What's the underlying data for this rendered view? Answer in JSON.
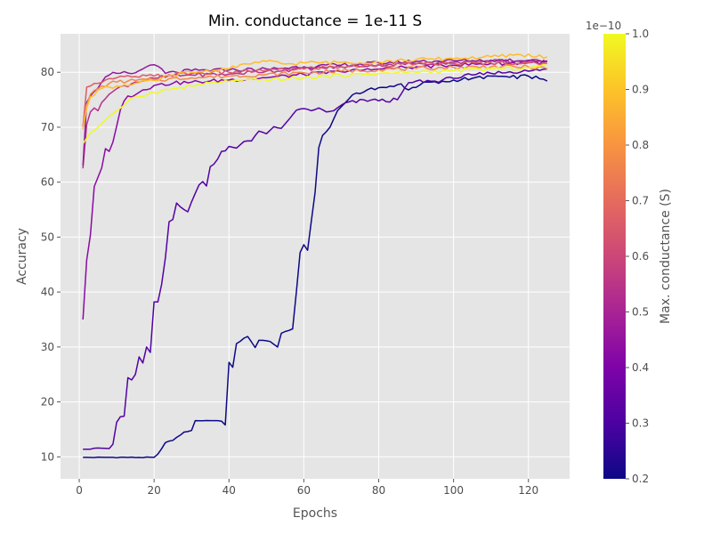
{
  "chart_data": {
    "type": "line",
    "title": "Min. conductance = 1e-11 S",
    "xlabel": "Epochs",
    "ylabel": "Accuracy",
    "xlim": [
      -5,
      131
    ],
    "ylim": [
      6,
      87
    ],
    "xticks": [
      0,
      20,
      40,
      60,
      80,
      100,
      120
    ],
    "yticks": [
      10,
      20,
      30,
      40,
      50,
      60,
      70,
      80
    ],
    "grid": true,
    "colorbar": {
      "label": "Max. conductance (S)",
      "offset_label": "1e−10",
      "ticks": [
        "0.2",
        "0.3",
        "0.4",
        "0.5",
        "0.6",
        "0.7",
        "0.8",
        "0.9",
        "1.0"
      ],
      "range": [
        0.2,
        1.0
      ],
      "colormap": "plasma"
    },
    "series": [
      {
        "color": "#0d0887",
        "knots": [
          [
            1,
            9.9
          ],
          [
            20,
            9.9
          ],
          [
            21,
            10.5
          ],
          [
            23,
            12.6
          ],
          [
            25,
            13.0
          ],
          [
            28,
            14.5
          ],
          [
            30,
            14.8
          ],
          [
            31,
            16.6
          ],
          [
            35,
            16.6
          ],
          [
            38,
            16.5
          ],
          [
            39,
            15.8
          ],
          [
            40,
            27.2
          ],
          [
            41,
            26.3
          ],
          [
            42,
            30.6
          ],
          [
            44,
            31.6
          ],
          [
            45,
            31.9
          ],
          [
            47,
            29.9
          ],
          [
            48,
            31.2
          ],
          [
            51,
            31.0
          ],
          [
            53,
            30.0
          ],
          [
            54,
            32.5
          ],
          [
            56,
            33.0
          ],
          [
            57,
            33.3
          ],
          [
            58,
            40.0
          ],
          [
            59,
            47.2
          ],
          [
            60,
            48.6
          ],
          [
            61,
            47.6
          ],
          [
            62,
            52.9
          ],
          [
            63,
            58.1
          ],
          [
            64,
            66.3
          ],
          [
            65,
            68.5
          ],
          [
            67,
            70.0
          ],
          [
            69,
            73.0
          ],
          [
            71,
            74.4
          ],
          [
            73,
            75.9
          ],
          [
            76,
            76.4
          ],
          [
            80,
            77.2
          ],
          [
            84,
            77.4
          ],
          [
            86,
            77.9
          ],
          [
            88,
            76.8
          ],
          [
            92,
            78.2
          ],
          [
            96,
            78.0
          ],
          [
            100,
            78.6
          ],
          [
            105,
            78.9
          ],
          [
            110,
            79.3
          ],
          [
            115,
            79.1
          ],
          [
            120,
            79.3
          ],
          [
            125,
            78.4
          ]
        ]
      },
      {
        "color": "#5302a3",
        "knots": [
          [
            1,
            11.4
          ],
          [
            3,
            11.4
          ],
          [
            5,
            11.6
          ],
          [
            8,
            11.5
          ],
          [
            9,
            12.3
          ],
          [
            10,
            16.3
          ],
          [
            11,
            17.3
          ],
          [
            12,
            17.4
          ],
          [
            13,
            24.4
          ],
          [
            14,
            24.0
          ],
          [
            15,
            25.0
          ],
          [
            16,
            28.2
          ],
          [
            17,
            27.1
          ],
          [
            18,
            30.0
          ],
          [
            19,
            29.0
          ],
          [
            20,
            38.2
          ],
          [
            21,
            38.2
          ],
          [
            22,
            41.4
          ],
          [
            23,
            46.2
          ],
          [
            24,
            52.8
          ],
          [
            25,
            53.2
          ],
          [
            26,
            56.2
          ],
          [
            27,
            55.5
          ],
          [
            28,
            55.0
          ],
          [
            29,
            54.6
          ],
          [
            30,
            56.4
          ],
          [
            32,
            59.5
          ],
          [
            33,
            60.1
          ],
          [
            34,
            59.3
          ],
          [
            35,
            62.8
          ],
          [
            36,
            63.3
          ],
          [
            37,
            64.2
          ],
          [
            38,
            65.6
          ],
          [
            39,
            65.7
          ],
          [
            40,
            66.5
          ],
          [
            42,
            66.2
          ],
          [
            44,
            67.4
          ],
          [
            46,
            67.5
          ],
          [
            48,
            69.3
          ],
          [
            50,
            68.8
          ],
          [
            52,
            70.1
          ],
          [
            54,
            69.8
          ],
          [
            56,
            71.4
          ],
          [
            58,
            73.1
          ],
          [
            60,
            73.4
          ],
          [
            62,
            73.0
          ],
          [
            64,
            73.5
          ],
          [
            66,
            72.8
          ],
          [
            68,
            73.0
          ],
          [
            70,
            74.0
          ],
          [
            72,
            74.6
          ],
          [
            74,
            74.5
          ],
          [
            76,
            75.0
          ],
          [
            80,
            74.8
          ],
          [
            85,
            75.0
          ],
          [
            88,
            78.1
          ],
          [
            90,
            78.4
          ],
          [
            95,
            78.4
          ],
          [
            100,
            78.9
          ],
          [
            105,
            79.5
          ],
          [
            110,
            79.8
          ],
          [
            115,
            80.1
          ],
          [
            120,
            80.2
          ],
          [
            125,
            80.6
          ]
        ]
      },
      {
        "color": "#8b0aa5",
        "knots": [
          [
            1,
            35.0
          ],
          [
            2,
            45.8
          ],
          [
            3,
            50.4
          ],
          [
            4,
            59.2
          ],
          [
            5,
            60.9
          ],
          [
            6,
            62.6
          ],
          [
            7,
            66.1
          ],
          [
            8,
            65.6
          ],
          [
            9,
            67.3
          ],
          [
            10,
            70.2
          ],
          [
            11,
            73.2
          ],
          [
            12,
            74.8
          ],
          [
            13,
            75.7
          ],
          [
            15,
            75.9
          ],
          [
            17,
            76.8
          ],
          [
            20,
            77.6
          ],
          [
            25,
            78.0
          ],
          [
            30,
            78.2
          ],
          [
            35,
            78.4
          ],
          [
            40,
            78.6
          ],
          [
            50,
            79.0
          ],
          [
            60,
            79.6
          ],
          [
            70,
            80.1
          ],
          [
            80,
            80.6
          ],
          [
            90,
            81.0
          ],
          [
            100,
            81.3
          ],
          [
            110,
            81.6
          ],
          [
            120,
            81.7
          ],
          [
            125,
            81.9
          ]
        ]
      },
      {
        "color": "#b83289",
        "knots": [
          [
            1,
            62.5
          ],
          [
            2,
            70.5
          ],
          [
            3,
            72.8
          ],
          [
            4,
            73.5
          ],
          [
            5,
            73.0
          ],
          [
            6,
            74.5
          ],
          [
            8,
            76.0
          ],
          [
            10,
            77.0
          ],
          [
            15,
            78.2
          ],
          [
            20,
            78.9
          ],
          [
            25,
            79.3
          ],
          [
            30,
            79.5
          ],
          [
            40,
            79.7
          ],
          [
            50,
            80.2
          ],
          [
            60,
            80.6
          ],
          [
            70,
            81.0
          ],
          [
            80,
            81.4
          ],
          [
            90,
            81.6
          ],
          [
            100,
            81.8
          ],
          [
            110,
            82.0
          ],
          [
            120,
            82.0
          ],
          [
            125,
            82.1
          ]
        ]
      },
      {
        "color": "#8f1a9a",
        "knots": [
          [
            1,
            63.0
          ],
          [
            2,
            74.5
          ],
          [
            4,
            76.5
          ],
          [
            6,
            78.2
          ],
          [
            8,
            79.5
          ],
          [
            10,
            79.8
          ],
          [
            15,
            79.9
          ],
          [
            18,
            81.0
          ],
          [
            21,
            81.1
          ],
          [
            23,
            79.8
          ],
          [
            26,
            80.0
          ],
          [
            30,
            80.3
          ],
          [
            40,
            80.4
          ],
          [
            50,
            80.6
          ],
          [
            60,
            81.0
          ],
          [
            70,
            81.3
          ],
          [
            80,
            81.7
          ],
          [
            90,
            82.0
          ],
          [
            100,
            82.1
          ],
          [
            110,
            82.2
          ],
          [
            120,
            82.2
          ],
          [
            125,
            82.0
          ]
        ]
      },
      {
        "color": "#db5c68",
        "knots": [
          [
            1,
            70.0
          ],
          [
            2,
            77.3
          ],
          [
            3,
            77.5
          ],
          [
            5,
            78.0
          ],
          [
            7,
            78.6
          ],
          [
            10,
            79.0
          ],
          [
            15,
            79.2
          ],
          [
            20,
            79.3
          ],
          [
            30,
            79.8
          ],
          [
            40,
            80.0
          ],
          [
            50,
            80.3
          ],
          [
            60,
            80.7
          ],
          [
            70,
            81.0
          ],
          [
            80,
            81.3
          ],
          [
            90,
            81.5
          ],
          [
            100,
            81.6
          ],
          [
            110,
            81.7
          ],
          [
            120,
            81.7
          ],
          [
            125,
            81.6
          ]
        ]
      },
      {
        "color": "#f48849",
        "knots": [
          [
            1,
            70.5
          ],
          [
            2,
            74.0
          ],
          [
            3,
            76.0
          ],
          [
            5,
            77.0
          ],
          [
            8,
            78.0
          ],
          [
            10,
            78.2
          ],
          [
            15,
            78.5
          ],
          [
            20,
            78.6
          ],
          [
            30,
            79.0
          ],
          [
            40,
            79.3
          ],
          [
            50,
            79.6
          ],
          [
            60,
            79.9
          ],
          [
            70,
            80.2
          ],
          [
            80,
            80.5
          ],
          [
            90,
            80.7
          ],
          [
            100,
            80.9
          ],
          [
            110,
            81.0
          ],
          [
            120,
            81.0
          ],
          [
            125,
            80.6
          ]
        ]
      },
      {
        "color": "#febc2a",
        "knots": [
          [
            1,
            69.6
          ],
          [
            2,
            73.5
          ],
          [
            3,
            75.5
          ],
          [
            5,
            76.8
          ],
          [
            8,
            77.3
          ],
          [
            10,
            77.5
          ],
          [
            15,
            78.0
          ],
          [
            20,
            78.5
          ],
          [
            25,
            79.5
          ],
          [
            30,
            80.0
          ],
          [
            40,
            80.6
          ],
          [
            45,
            81.5
          ],
          [
            50,
            82.0
          ],
          [
            55,
            81.5
          ],
          [
            60,
            81.7
          ],
          [
            70,
            81.8
          ],
          [
            80,
            81.9
          ],
          [
            90,
            82.3
          ],
          [
            100,
            82.5
          ],
          [
            110,
            82.8
          ],
          [
            118,
            83.2
          ],
          [
            125,
            82.8
          ]
        ]
      },
      {
        "color": "#f0f921",
        "knots": [
          [
            1,
            67.0
          ],
          [
            2,
            68.0
          ],
          [
            3,
            69.0
          ],
          [
            5,
            70.0
          ],
          [
            8,
            72.0
          ],
          [
            10,
            73.0
          ],
          [
            12,
            74.0
          ],
          [
            15,
            75.5
          ],
          [
            20,
            76.3
          ],
          [
            25,
            77.0
          ],
          [
            30,
            77.5
          ],
          [
            35,
            78.0
          ],
          [
            40,
            78.3
          ],
          [
            50,
            78.6
          ],
          [
            60,
            79.0
          ],
          [
            70,
            79.4
          ],
          [
            80,
            79.8
          ],
          [
            90,
            80.0
          ],
          [
            100,
            80.3
          ],
          [
            110,
            80.6
          ],
          [
            120,
            80.8
          ],
          [
            125,
            81.2
          ]
        ]
      }
    ]
  }
}
